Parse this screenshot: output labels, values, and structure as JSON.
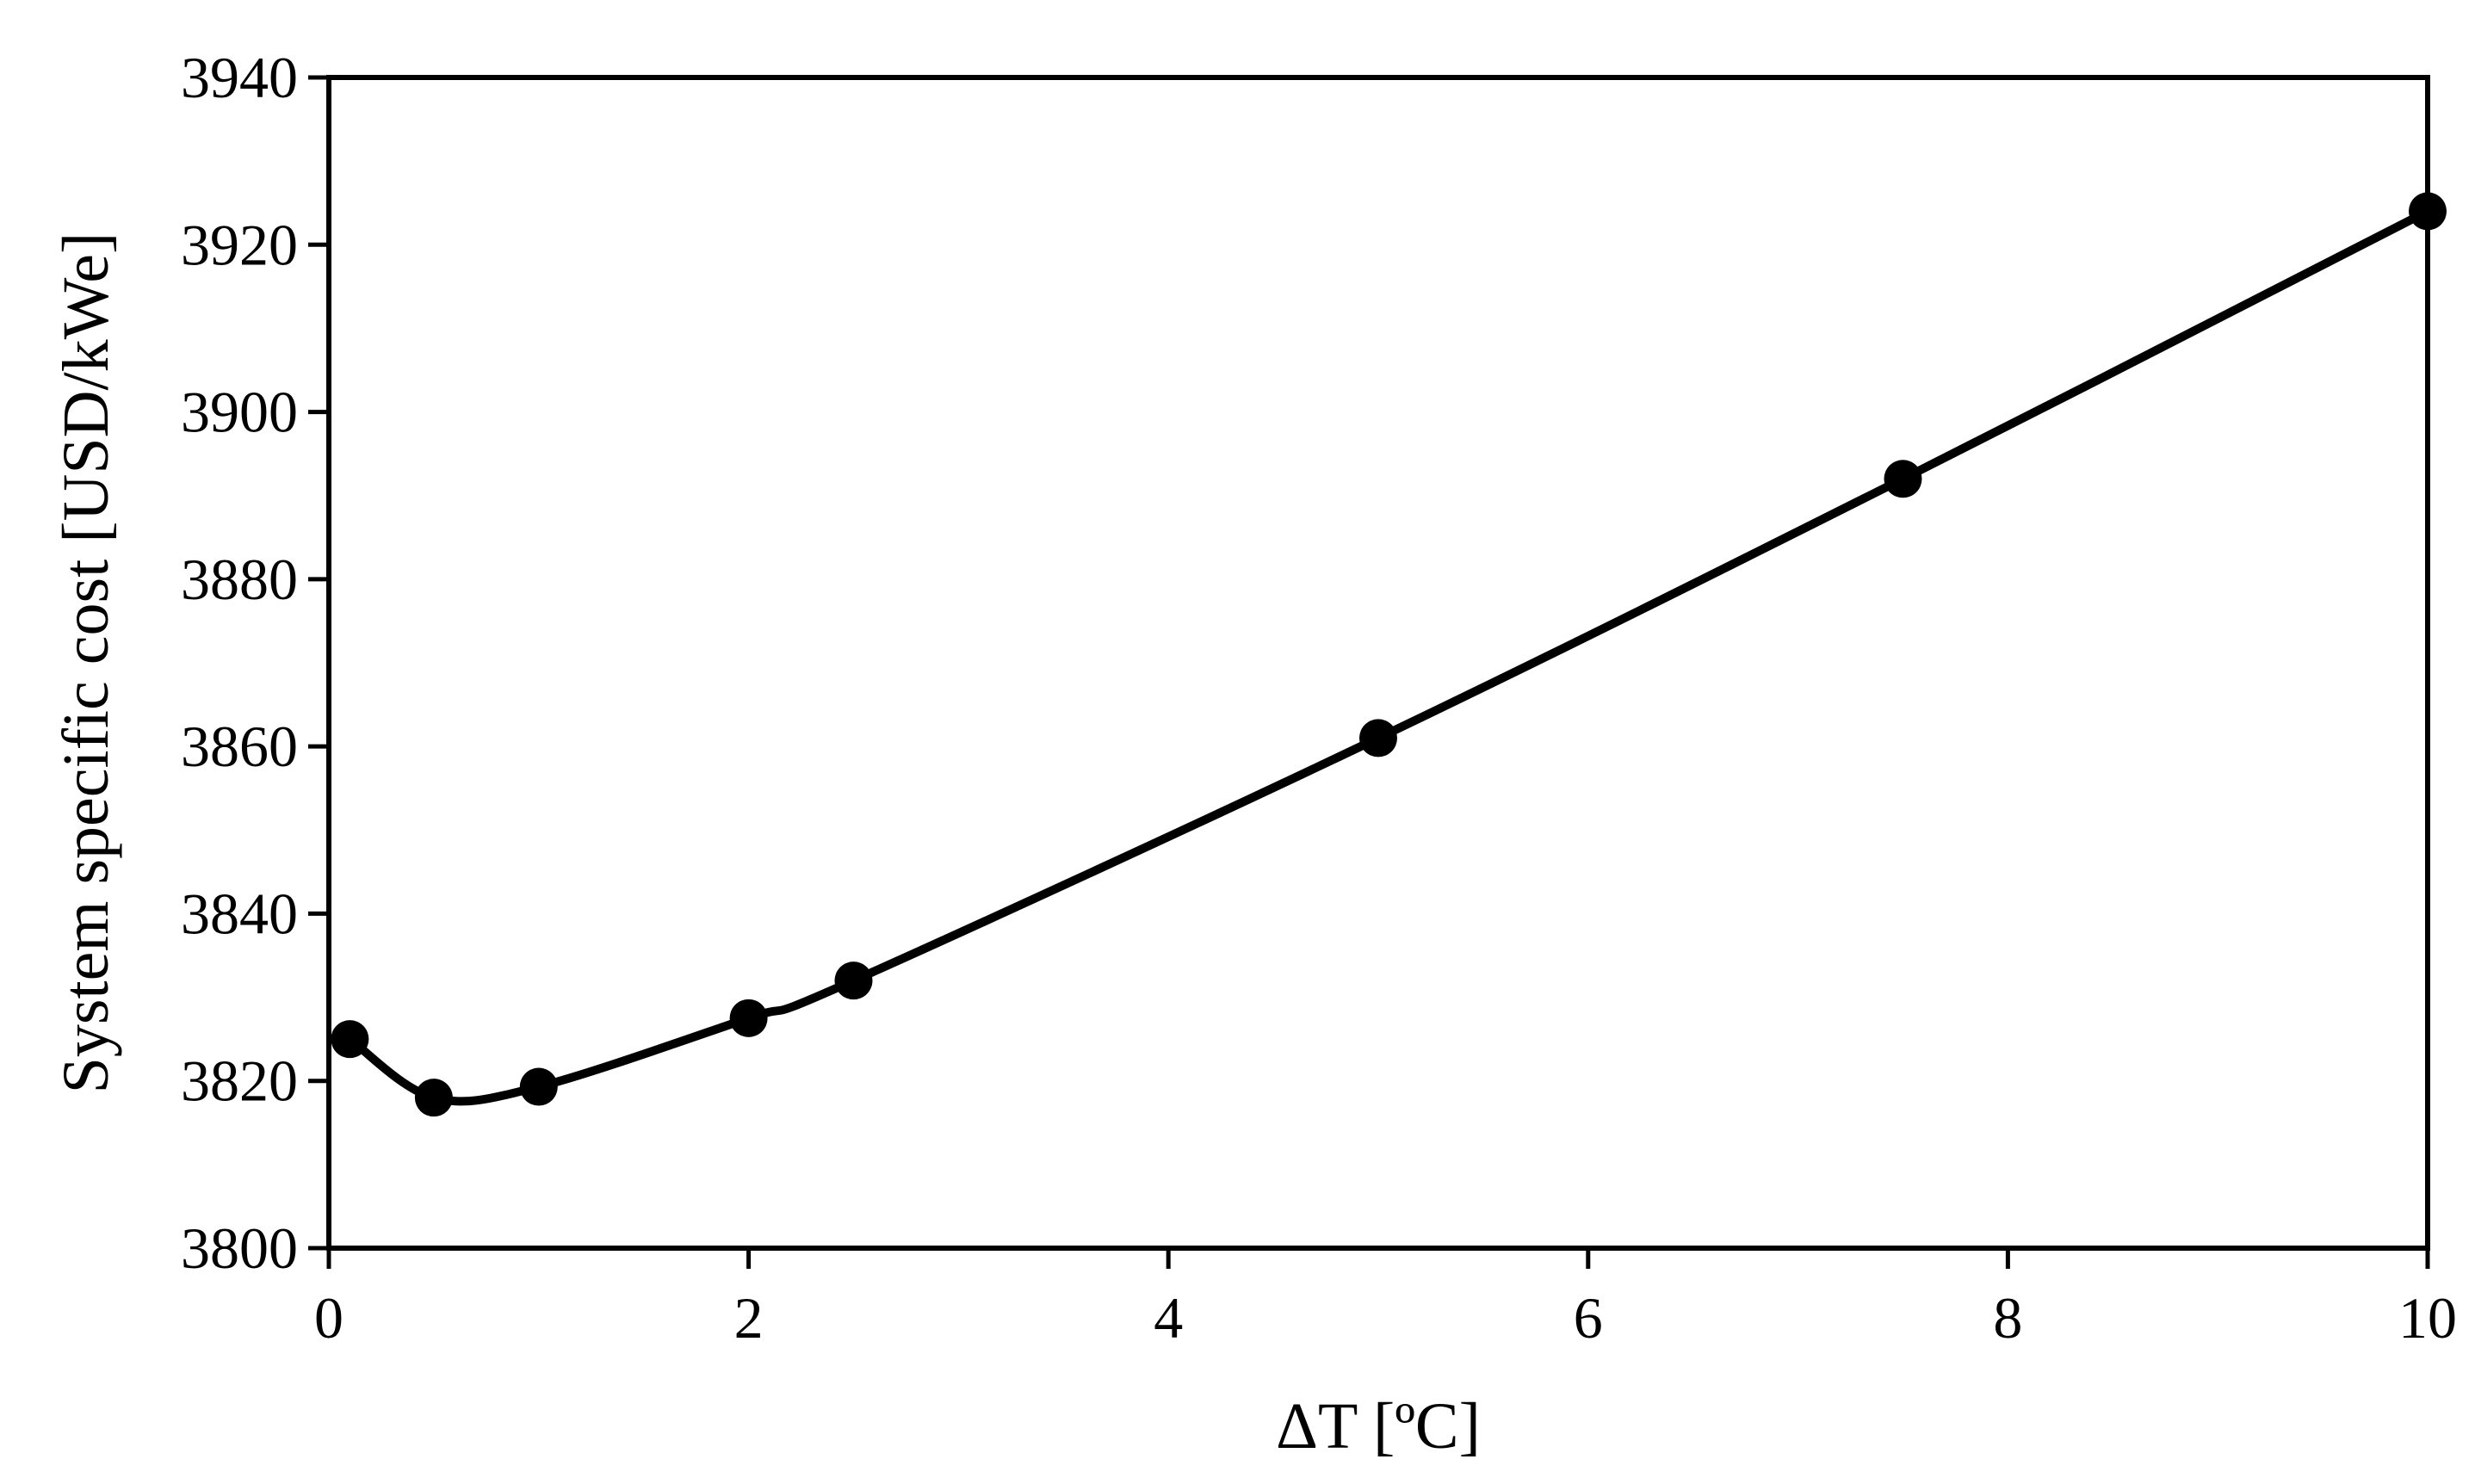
{
  "chart_data": {
    "type": "line",
    "xlabel": "ΔT [ºC]",
    "ylabel": "System specific cost [USD/kWe]",
    "xlim": [
      0,
      10
    ],
    "ylim": [
      3800,
      3940
    ],
    "x_ticks": [
      0,
      2,
      4,
      6,
      8,
      10
    ],
    "y_ticks": [
      3800,
      3820,
      3840,
      3860,
      3880,
      3900,
      3920,
      3940
    ],
    "grid": false,
    "smoothed": true,
    "series": [
      {
        "x": [
          0.1,
          0.5,
          1,
          2,
          2.5,
          5,
          7.5,
          10
        ],
        "y": [
          3825,
          3818,
          3819.3,
          3827.5,
          3832,
          3861,
          3892,
          3924
        ],
        "color": "#000000",
        "marker": "circle"
      }
    ]
  }
}
